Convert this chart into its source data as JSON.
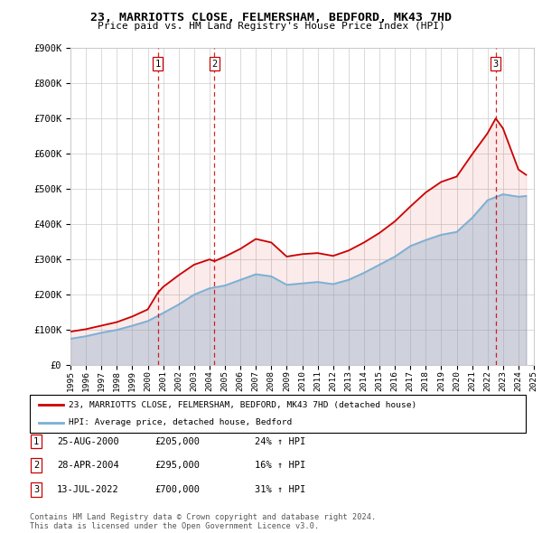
{
  "title": "23, MARRIOTTS CLOSE, FELMERSHAM, BEDFORD, MK43 7HD",
  "subtitle": "Price paid vs. HM Land Registry's House Price Index (HPI)",
  "property_label": "23, MARRIOTTS CLOSE, FELMERSHAM, BEDFORD, MK43 7HD (detached house)",
  "hpi_label": "HPI: Average price, detached house, Bedford",
  "footer": "Contains HM Land Registry data © Crown copyright and database right 2024.\nThis data is licensed under the Open Government Licence v3.0.",
  "transactions": [
    {
      "num": 1,
      "date": "25-AUG-2000",
      "price": 205000,
      "pct": "24%",
      "dir": "↑",
      "x": 2000.65
    },
    {
      "num": 2,
      "date": "28-APR-2004",
      "price": 295000,
      "pct": "16%",
      "dir": "↑",
      "x": 2004.32
    },
    {
      "num": 3,
      "date": "13-JUL-2022",
      "price": 700000,
      "pct": "31%",
      "dir": "↑",
      "x": 2022.53
    }
  ],
  "property_color": "#cc0000",
  "hpi_color": "#7ab0d4",
  "vline_color": "#cc0000",
  "ylim": [
    0,
    900000
  ],
  "xlim": [
    1995,
    2025
  ],
  "yticks": [
    0,
    100000,
    200000,
    300000,
    400000,
    500000,
    600000,
    700000,
    800000,
    900000
  ],
  "xticks": [
    1995,
    1996,
    1997,
    1998,
    1999,
    2000,
    2001,
    2002,
    2003,
    2004,
    2005,
    2006,
    2007,
    2008,
    2009,
    2010,
    2011,
    2012,
    2013,
    2014,
    2015,
    2016,
    2017,
    2018,
    2019,
    2020,
    2021,
    2022,
    2023,
    2024,
    2025
  ],
  "hpi_x": [
    1995,
    1996,
    1997,
    1998,
    1999,
    2000,
    2001,
    2002,
    2003,
    2004,
    2005,
    2006,
    2007,
    2008,
    2009,
    2010,
    2011,
    2012,
    2013,
    2014,
    2015,
    2016,
    2017,
    2018,
    2019,
    2020,
    2021,
    2022,
    2023,
    2024,
    2024.5
  ],
  "hpi_y": [
    75000,
    82000,
    92000,
    100000,
    112000,
    125000,
    148000,
    172000,
    200000,
    218000,
    226000,
    242000,
    258000,
    252000,
    228000,
    232000,
    236000,
    230000,
    242000,
    262000,
    285000,
    308000,
    338000,
    355000,
    370000,
    378000,
    418000,
    468000,
    485000,
    478000,
    480000
  ],
  "prop_x": [
    1995,
    1996,
    1997,
    1998,
    1999,
    2000,
    2000.65,
    2001,
    2002,
    2003,
    2004,
    2004.32,
    2005,
    2006,
    2007,
    2008,
    2009,
    2010,
    2011,
    2012,
    2013,
    2014,
    2015,
    2016,
    2017,
    2018,
    2019,
    2020,
    2021,
    2022,
    2022.53,
    2023,
    2024,
    2024.5
  ],
  "prop_y": [
    95000,
    102000,
    112000,
    122000,
    138000,
    158000,
    205000,
    222000,
    255000,
    285000,
    300000,
    295000,
    308000,
    330000,
    358000,
    348000,
    308000,
    315000,
    318000,
    310000,
    325000,
    348000,
    375000,
    408000,
    450000,
    490000,
    520000,
    535000,
    598000,
    658000,
    700000,
    672000,
    555000,
    540000
  ]
}
